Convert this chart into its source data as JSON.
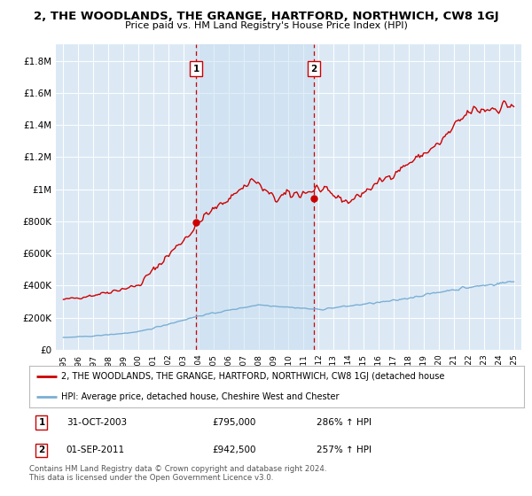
{
  "title": "2, THE WOODLANDS, THE GRANGE, HARTFORD, NORTHWICH, CW8 1GJ",
  "subtitle": "Price paid vs. HM Land Registry's House Price Index (HPI)",
  "background_color": "#ffffff",
  "plot_bg_color": "#dce9f5",
  "grid_color": "#ffffff",
  "red_line_color": "#cc0000",
  "blue_line_color": "#7bafd4",
  "dashed_line_color": "#cc0000",
  "marker1_x": 2003.83,
  "marker1_y": 795000,
  "marker2_x": 2011.67,
  "marker2_y": 942500,
  "marker1_label": "1",
  "marker2_label": "2",
  "ylim": [
    0,
    1900000
  ],
  "xlim": [
    1994.5,
    2025.5
  ],
  "yticks": [
    0,
    200000,
    400000,
    600000,
    800000,
    1000000,
    1200000,
    1400000,
    1600000,
    1800000
  ],
  "ytick_labels": [
    "£0",
    "£200K",
    "£400K",
    "£600K",
    "£800K",
    "£1M",
    "£1.2M",
    "£1.4M",
    "£1.6M",
    "£1.8M"
  ],
  "legend_red_label": "2, THE WOODLANDS, THE GRANGE, HARTFORD, NORTHWICH, CW8 1GJ (detached house",
  "legend_blue_label": "HPI: Average price, detached house, Cheshire West and Chester",
  "table_row1": [
    "1",
    "31-OCT-2003",
    "£795,000",
    "286% ↑ HPI"
  ],
  "table_row2": [
    "2",
    "01-SEP-2011",
    "£942,500",
    "257% ↑ HPI"
  ],
  "footnote": "Contains HM Land Registry data © Crown copyright and database right 2024.\nThis data is licensed under the Open Government Licence v3.0."
}
